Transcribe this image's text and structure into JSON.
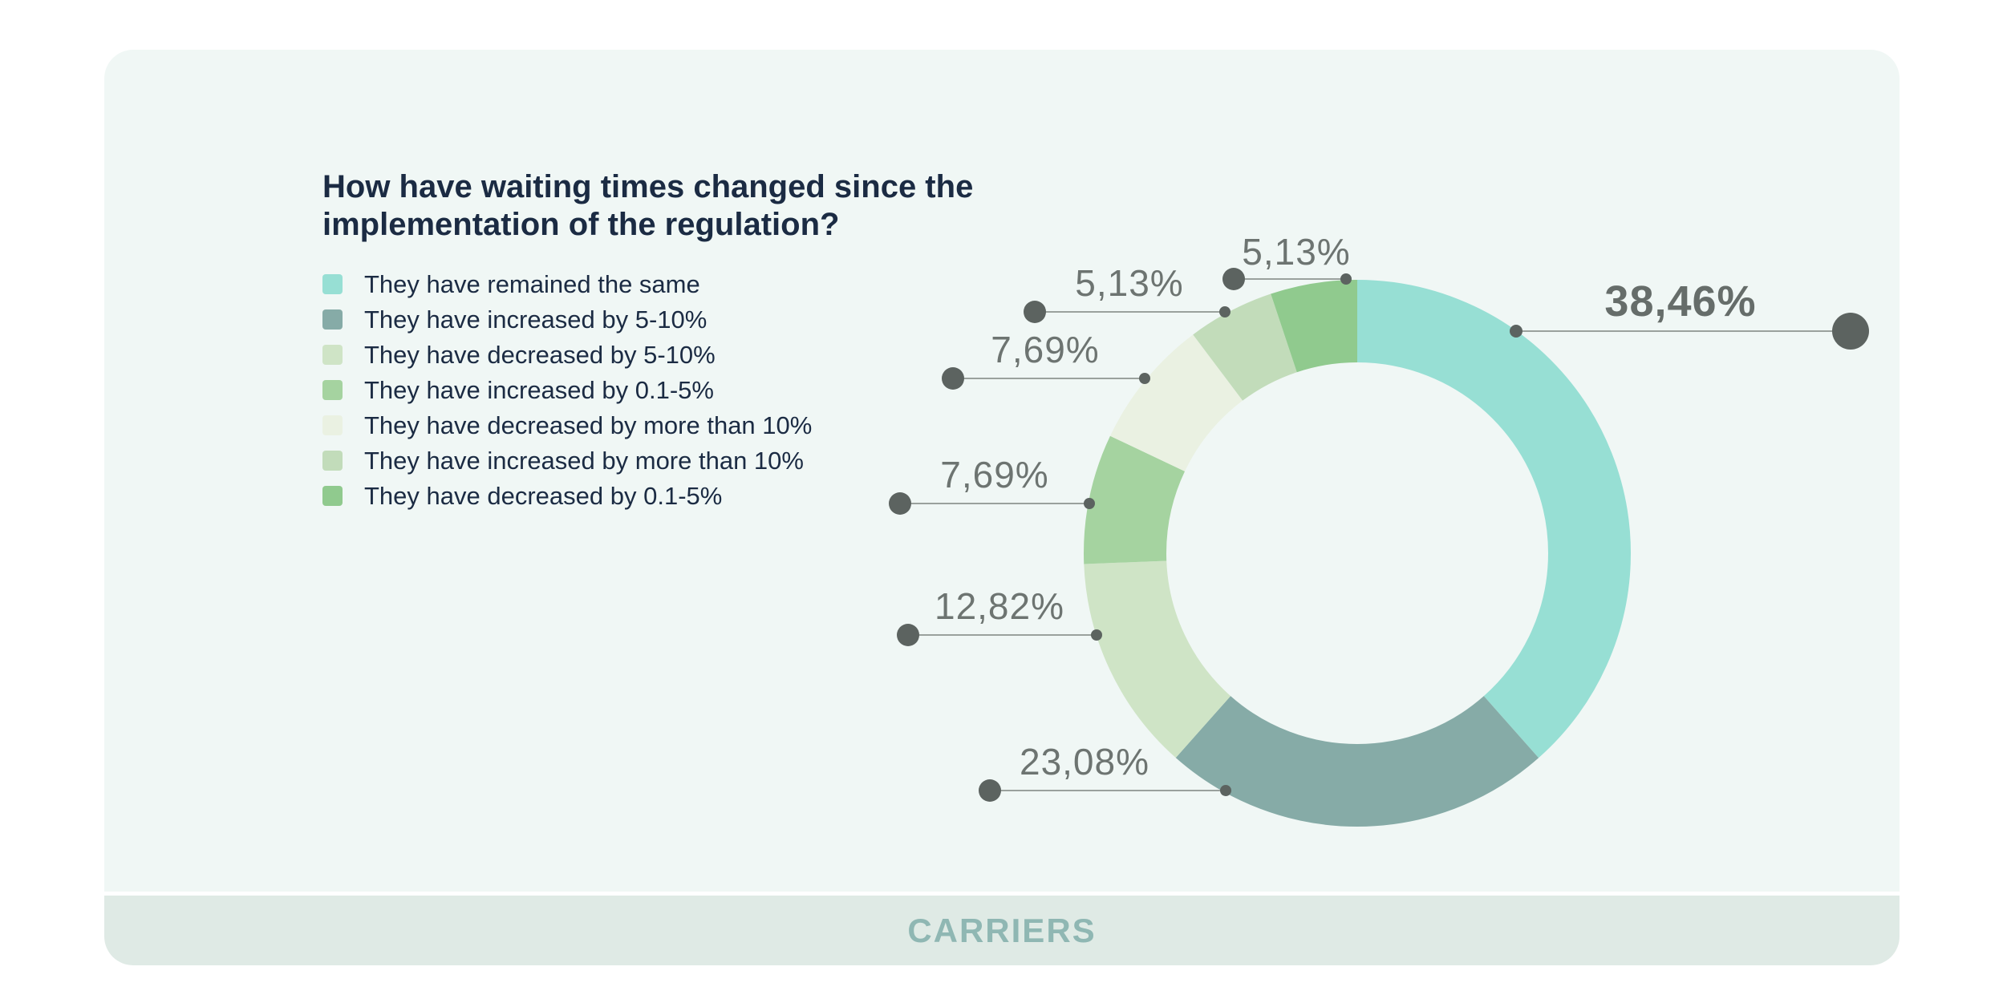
{
  "page_background": "#FFFFFF",
  "card": {
    "background": "#F0F7F5"
  },
  "footer": {
    "label": "CARRIERS",
    "background": "#DFEAE5",
    "text_color": "#8FB7B3"
  },
  "chart_data": {
    "type": "pie",
    "variant": "donut",
    "title": "How have waiting times changed since the implementation of the regulation?",
    "legend_position": "left",
    "unit": "%",
    "decimal_separator": ",",
    "total": 100,
    "categories": [
      "They have remained the same",
      "They have increased by 5-10%",
      "They have decreased by 5-10%",
      "They have increased by 0.1-5%",
      "They have decreased by more than 10%",
      "They have increased by more than 10%",
      "They have decreased by 0.1-5%"
    ],
    "values": [
      38.46,
      23.08,
      12.82,
      7.69,
      7.69,
      5.13,
      5.13
    ],
    "series": [
      {
        "label": "They have remained the same",
        "value": 38.46,
        "display": "38,46%",
        "color": "#97DFD4",
        "emphasized": true
      },
      {
        "label": "They have increased by 5-10%",
        "value": 23.08,
        "display": "23,08%",
        "color": "#86ABA7",
        "emphasized": false
      },
      {
        "label": "They have decreased by 5-10%",
        "value": 12.82,
        "display": "12,82%",
        "color": "#CFE4C6",
        "emphasized": false
      },
      {
        "label": "They have increased by 0.1-5%",
        "value": 7.69,
        "display": "7,69%",
        "color": "#A5D3A0",
        "emphasized": false
      },
      {
        "label": "They have decreased by more than 10%",
        "value": 7.69,
        "display": "7,69%",
        "color": "#EAF1E2",
        "emphasized": false
      },
      {
        "label": "They have increased by more than 10%",
        "value": 5.13,
        "display": "5,13%",
        "color": "#C2DCBA",
        "emphasized": false
      },
      {
        "label": "They have decreased by 0.1-5%",
        "value": 5.13,
        "display": "5,13%",
        "color": "#90CA8E",
        "emphasized": false
      }
    ],
    "style_colors": {
      "title_text": "#1B2B43",
      "legend_text": "#1B2B43",
      "callout_text": "#6D7471",
      "callout_text_emphasized": "#666D6A",
      "leader_line": "#9AA19D",
      "dot": "#5C6360"
    }
  }
}
